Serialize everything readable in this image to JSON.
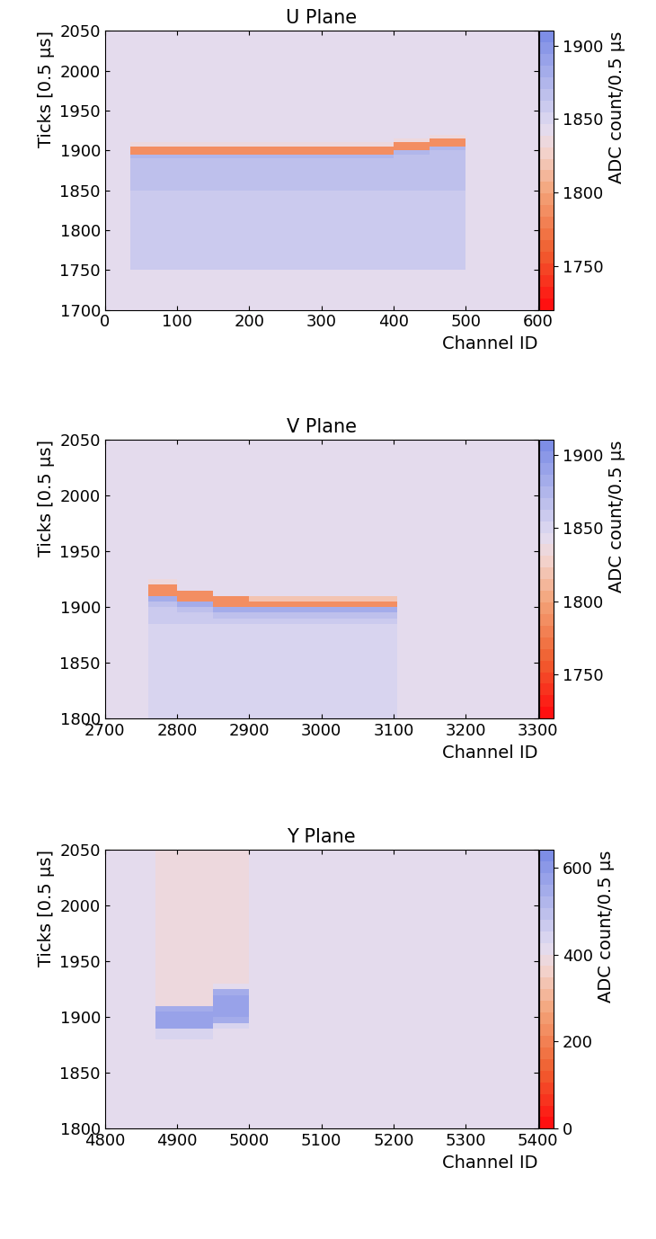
{
  "chart_data": [
    {
      "type": "heatmap",
      "title": "U Plane",
      "xlabel": "Channel ID",
      "ylabel": "Ticks [0.5 μs]",
      "colorbar_label": "ADC count/0.5 μs",
      "xlim": [
        0,
        600
      ],
      "ylim": [
        1700,
        2050
      ],
      "xticks": [
        0,
        100,
        200,
        300,
        400,
        500,
        600
      ],
      "yticks": [
        1700,
        1750,
        1800,
        1850,
        1900,
        1950,
        2000,
        2050
      ],
      "colorbar_range": [
        1720,
        1910
      ],
      "colorbar_ticks": [
        1750,
        1800,
        1850,
        1900
      ],
      "x_edges": [
        0,
        35,
        100,
        150,
        200,
        250,
        300,
        350,
        400,
        450,
        500,
        600
      ],
      "y_edges": [
        1700,
        1750,
        1850,
        1885,
        1890,
        1895,
        1900,
        1905,
        1910,
        1915,
        1920,
        1925,
        2050
      ],
      "cells_by_channel": [
        [
          1845,
          1845,
          1845,
          1845,
          1845,
          1845,
          1845,
          1845,
          1845,
          1845,
          1845,
          1845
        ],
        [
          1845,
          1860,
          1865,
          1870,
          1875,
          1790,
          1790,
          1835,
          1845,
          1845,
          1845,
          1845
        ],
        [
          1845,
          1860,
          1865,
          1870,
          1875,
          1790,
          1790,
          1835,
          1845,
          1845,
          1845,
          1845
        ],
        [
          1845,
          1860,
          1865,
          1870,
          1875,
          1790,
          1790,
          1835,
          1845,
          1845,
          1845,
          1845
        ],
        [
          1845,
          1860,
          1865,
          1870,
          1875,
          1790,
          1790,
          1835,
          1845,
          1845,
          1845,
          1845
        ],
        [
          1845,
          1860,
          1865,
          1870,
          1875,
          1790,
          1790,
          1835,
          1845,
          1845,
          1845,
          1845
        ],
        [
          1845,
          1860,
          1865,
          1870,
          1875,
          1790,
          1790,
          1835,
          1845,
          1845,
          1845,
          1845
        ],
        [
          1845,
          1860,
          1865,
          1870,
          1875,
          1790,
          1790,
          1835,
          1845,
          1845,
          1845,
          1845
        ],
        [
          1845,
          1860,
          1865,
          1865,
          1870,
          1875,
          1790,
          1790,
          1835,
          1845,
          1845,
          1845
        ],
        [
          1845,
          1860,
          1865,
          1865,
          1865,
          1870,
          1875,
          1790,
          1790,
          1835,
          1845,
          1845
        ],
        [
          1845,
          1845,
          1845,
          1845,
          1845,
          1845,
          1845,
          1845,
          1845,
          1845,
          1845,
          1845
        ]
      ]
    },
    {
      "type": "heatmap",
      "title": "V Plane",
      "xlabel": "Channel ID",
      "ylabel": "Ticks [0.5 μs]",
      "colorbar_label": "ADC count/0.5 μs",
      "xlim": [
        2700,
        3300
      ],
      "ylim": [
        1800,
        2050
      ],
      "xticks": [
        2700,
        2800,
        2900,
        3000,
        3100,
        3200,
        3300
      ],
      "yticks": [
        1800,
        1850,
        1900,
        1950,
        2000,
        2050
      ],
      "colorbar_range": [
        1720,
        1910
      ],
      "colorbar_ticks": [
        1750,
        1800,
        1850,
        1900
      ],
      "x_edges": [
        2700,
        2760,
        2800,
        2850,
        2900,
        3000,
        3105,
        3300
      ],
      "y_edges": [
        1800,
        1850,
        1885,
        1890,
        1895,
        1900,
        1905,
        1910,
        1915,
        1920,
        1925,
        2050
      ],
      "cells_by_channel": [
        [
          1845,
          1845,
          1845,
          1845,
          1845,
          1845,
          1845,
          1845,
          1845,
          1845,
          1845
        ],
        [
          1848,
          1852,
          1855,
          1855,
          1860,
          1865,
          1880,
          1790,
          1790,
          1835,
          1845
        ],
        [
          1848,
          1852,
          1855,
          1855,
          1865,
          1880,
          1790,
          1790,
          1840,
          1845,
          1845
        ],
        [
          1848,
          1852,
          1855,
          1865,
          1880,
          1790,
          1790,
          1840,
          1845,
          1845,
          1845
        ],
        [
          1848,
          1852,
          1855,
          1870,
          1885,
          1785,
          1815,
          1845,
          1845,
          1845,
          1845
        ],
        [
          1848,
          1852,
          1855,
          1870,
          1885,
          1785,
          1815,
          1845,
          1845,
          1845,
          1845
        ],
        [
          1845,
          1845,
          1845,
          1845,
          1845,
          1845,
          1845,
          1845,
          1845,
          1845,
          1845
        ]
      ]
    },
    {
      "type": "heatmap",
      "title": "Y Plane",
      "xlabel": "Channel ID",
      "ylabel": "Ticks [0.5 μs]",
      "colorbar_label": "ADC count/0.5 μs",
      "xlim": [
        4800,
        5400
      ],
      "ylim": [
        1800,
        2050
      ],
      "xticks": [
        4800,
        4900,
        5000,
        5100,
        5200,
        5300,
        5400
      ],
      "yticks": [
        1800,
        1850,
        1900,
        1950,
        2000,
        2050
      ],
      "colorbar_range": [
        0,
        640
      ],
      "colorbar_ticks": [
        0,
        200,
        400,
        600
      ],
      "x_edges": [
        4800,
        4870,
        4900,
        4950,
        5000,
        5400
      ],
      "y_edges": [
        1800,
        1880,
        1890,
        1895,
        1900,
        1905,
        1910,
        1915,
        1920,
        1925,
        1930,
        2050
      ],
      "cells_by_channel": [
        [
          420,
          420,
          420,
          420,
          420,
          420,
          420,
          420,
          420,
          420,
          420
        ],
        [
          420,
          430,
          560,
          560,
          560,
          540,
          390,
          390,
          390,
          390,
          390
        ],
        [
          420,
          440,
          560,
          560,
          560,
          540,
          390,
          390,
          390,
          390,
          390
        ],
        [
          420,
          420,
          440,
          540,
          560,
          560,
          560,
          560,
          540,
          400,
          390
        ],
        [
          420,
          420,
          420,
          420,
          420,
          420,
          420,
          420,
          420,
          420,
          420
        ]
      ]
    }
  ]
}
